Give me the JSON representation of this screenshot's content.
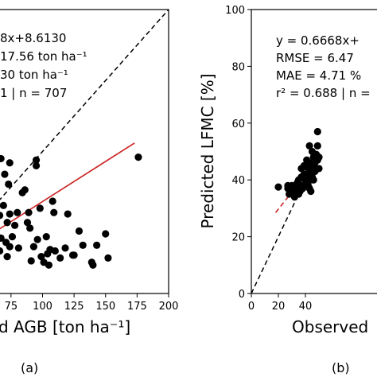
{
  "figure": {
    "panels": [
      "(a)",
      "(b)"
    ]
  },
  "chart_data": [
    {
      "type": "scatter",
      "panel_label": "(a)",
      "title": "",
      "xlabel": "d AGB [ton ha⁻¹]",
      "ylabel": "",
      "xlim": [
        65,
        200
      ],
      "ylim": [
        0,
        200
      ],
      "xticks": [
        75,
        100,
        125,
        150,
        175,
        200
      ],
      "x_tick_labels": [
        "75",
        "100",
        "125",
        "150",
        "175",
        "200"
      ],
      "yticks": [],
      "grid": false,
      "annotations": [
        "8x+8.6130",
        "17.56 ton ha⁻¹",
        "30 ton ha⁻¹",
        "1 | n = 707"
      ],
      "series": [
        {
          "role": "points",
          "color": "#000000",
          "points": [
            {
              "x": 67,
              "y": 95
            },
            {
              "x": 70,
              "y": 84
            },
            {
              "x": 73,
              "y": 77
            },
            {
              "x": 74,
              "y": 92
            },
            {
              "x": 69,
              "y": 62
            },
            {
              "x": 66,
              "y": 55
            },
            {
              "x": 72,
              "y": 50
            },
            {
              "x": 74,
              "y": 56
            },
            {
              "x": 67,
              "y": 39
            },
            {
              "x": 71,
              "y": 36
            },
            {
              "x": 74,
              "y": 33
            },
            {
              "x": 66,
              "y": 30
            },
            {
              "x": 72,
              "y": 26
            },
            {
              "x": 76,
              "y": 40
            },
            {
              "x": 78,
              "y": 48
            },
            {
              "x": 80,
              "y": 57
            },
            {
              "x": 81,
              "y": 32
            },
            {
              "x": 84,
              "y": 71
            },
            {
              "x": 86,
              "y": 73
            },
            {
              "x": 88,
              "y": 50
            },
            {
              "x": 89,
              "y": 57
            },
            {
              "x": 90,
              "y": 46
            },
            {
              "x": 91,
              "y": 23
            },
            {
              "x": 93,
              "y": 33
            },
            {
              "x": 95,
              "y": 94
            },
            {
              "x": 95,
              "y": 90
            },
            {
              "x": 96,
              "y": 38
            },
            {
              "x": 98,
              "y": 60
            },
            {
              "x": 99,
              "y": 26
            },
            {
              "x": 101,
              "y": 22
            },
            {
              "x": 103,
              "y": 40
            },
            {
              "x": 104,
              "y": 28
            },
            {
              "x": 105,
              "y": 20
            },
            {
              "x": 106,
              "y": 31
            },
            {
              "x": 108,
              "y": 65
            },
            {
              "x": 109,
              "y": 57
            },
            {
              "x": 110,
              "y": 30
            },
            {
              "x": 114,
              "y": 25
            },
            {
              "x": 118,
              "y": 32
            },
            {
              "x": 120,
              "y": 56
            },
            {
              "x": 124,
              "y": 27
            },
            {
              "x": 125,
              "y": 27
            },
            {
              "x": 129,
              "y": 44
            },
            {
              "x": 132,
              "y": 34
            },
            {
              "x": 139,
              "y": 22
            },
            {
              "x": 140,
              "y": 20
            },
            {
              "x": 143,
              "y": 34
            },
            {
              "x": 150,
              "y": 42
            },
            {
              "x": 152,
              "y": 25
            },
            {
              "x": 176,
              "y": 96
            }
          ]
        },
        {
          "role": "fit",
          "color": "#cc2222",
          "points": [
            {
              "x": 65,
              "y": 45
            },
            {
              "x": 173,
              "y": 106
            }
          ]
        },
        {
          "role": "one-to-one",
          "color": "#000000",
          "dash": true,
          "points": [
            {
              "x": 65,
              "y": 65
            },
            {
              "x": 200,
              "y": 200
            }
          ]
        }
      ]
    },
    {
      "type": "scatter",
      "panel_label": "(b)",
      "title": "",
      "xlabel": "Observed",
      "ylabel": "Predicted LFMC [%]",
      "xlim": [
        0,
        100
      ],
      "ylim": [
        0,
        100
      ],
      "xticks": [
        0,
        20,
        40
      ],
      "x_tick_labels": [
        "0",
        "20",
        "40"
      ],
      "yticks": [
        0,
        20,
        40,
        60,
        80,
        100
      ],
      "y_tick_labels": [
        "0",
        "20",
        "40",
        "60",
        "80",
        "100"
      ],
      "grid": false,
      "annotations": [
        "y = 0.6668x+",
        "RMSE = 6.47",
        "MAE = 4.71 %",
        "r² = 0.688 | n ="
      ],
      "series": [
        {
          "role": "points",
          "color": "#000000",
          "points": [
            {
              "x": 20,
              "y": 37.5
            },
            {
              "x": 27,
              "y": 38
            },
            {
              "x": 27,
              "y": 37
            },
            {
              "x": 28,
              "y": 35
            },
            {
              "x": 29,
              "y": 36
            },
            {
              "x": 30,
              "y": 38
            },
            {
              "x": 31,
              "y": 35
            },
            {
              "x": 32,
              "y": 34
            },
            {
              "x": 33,
              "y": 38
            },
            {
              "x": 33,
              "y": 36
            },
            {
              "x": 34,
              "y": 39
            },
            {
              "x": 34,
              "y": 37
            },
            {
              "x": 35,
              "y": 40
            },
            {
              "x": 35,
              "y": 35
            },
            {
              "x": 36,
              "y": 36
            },
            {
              "x": 37,
              "y": 44
            },
            {
              "x": 37,
              "y": 41
            },
            {
              "x": 38,
              "y": 38
            },
            {
              "x": 38,
              "y": 37
            },
            {
              "x": 39,
              "y": 45
            },
            {
              "x": 39,
              "y": 42
            },
            {
              "x": 40,
              "y": 40
            },
            {
              "x": 41,
              "y": 47
            },
            {
              "x": 41,
              "y": 42
            },
            {
              "x": 41,
              "y": 39
            },
            {
              "x": 42,
              "y": 45
            },
            {
              "x": 42,
              "y": 44
            },
            {
              "x": 42,
              "y": 38
            },
            {
              "x": 43,
              "y": 52
            },
            {
              "x": 43,
              "y": 42
            },
            {
              "x": 43,
              "y": 37
            },
            {
              "x": 44,
              "y": 46
            },
            {
              "x": 44,
              "y": 40
            },
            {
              "x": 44,
              "y": 36
            },
            {
              "x": 45,
              "y": 50
            },
            {
              "x": 45,
              "y": 44
            },
            {
              "x": 45,
              "y": 41
            },
            {
              "x": 46,
              "y": 48
            },
            {
              "x": 46,
              "y": 45
            },
            {
              "x": 46,
              "y": 40
            },
            {
              "x": 47,
              "y": 43
            },
            {
              "x": 47,
              "y": 46
            },
            {
              "x": 48,
              "y": 44
            },
            {
              "x": 48,
              "y": 49
            },
            {
              "x": 49,
              "y": 47
            },
            {
              "x": 49,
              "y": 57
            },
            {
              "x": 49,
              "y": 52
            },
            {
              "x": 50,
              "y": 48
            },
            {
              "x": 50,
              "y": 44
            }
          ]
        },
        {
          "role": "fit",
          "color": "#cc2222",
          "dash": true,
          "points": [
            {
              "x": 18,
              "y": 28.5
            },
            {
              "x": 38,
              "y": 40.5
            }
          ]
        },
        {
          "role": "fit",
          "color": "#cc2222",
          "points": [
            {
              "x": 38,
              "y": 40.5
            },
            {
              "x": 50,
              "y": 48
            }
          ]
        },
        {
          "role": "one-to-one",
          "color": "#000000",
          "dash": true,
          "points": [
            {
              "x": 0,
              "y": 0
            },
            {
              "x": 50,
              "y": 50
            }
          ]
        }
      ]
    }
  ]
}
